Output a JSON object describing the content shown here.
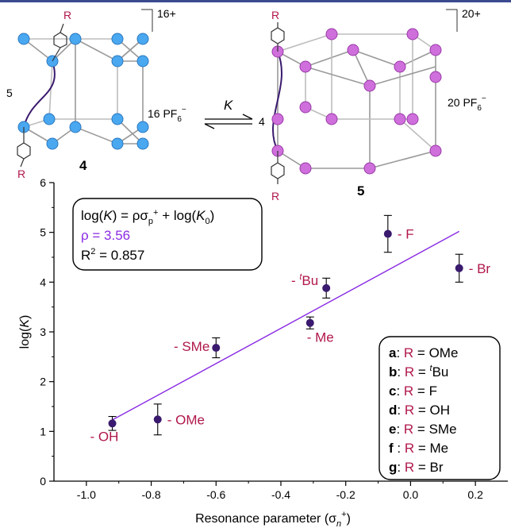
{
  "scheme": {
    "cage4": {
      "label": "4",
      "charge": "16+",
      "edge_count": "5",
      "counterion_count": "16",
      "counterion": "PF",
      "counterion_sub": "6",
      "counterion_sup": "−",
      "substituent": "R"
    },
    "cage5": {
      "label": "5",
      "charge": "20+",
      "edge_count": "4",
      "counterion_count": "20",
      "counterion": "PF",
      "counterion_sub": "6",
      "counterion_sup": "−",
      "substituent": "R"
    },
    "equilibrium_label": "K"
  },
  "equation_box": {
    "line1": {
      "a": "log(",
      "b": "K",
      "c": ") = ρσ",
      "d": "p",
      "e": "+",
      "f": " + log(",
      "g": "K",
      "h": "0",
      "i": ")"
    },
    "rho": "ρ = 3.56",
    "r2": {
      "a": "R",
      "b": "2",
      "c": " = 0.857"
    }
  },
  "legend_box": {
    "rows": [
      {
        "key": "a",
        "sep": ": ",
        "r": "R",
        "eq": " = ",
        "sup": "",
        "val": "OMe"
      },
      {
        "key": "b",
        "sep": ": ",
        "r": "R",
        "eq": " = ",
        "sup": "t",
        "val": "Bu"
      },
      {
        "key": "c",
        "sep": ": ",
        "r": "R",
        "eq": " = ",
        "sup": "",
        "val": "F"
      },
      {
        "key": "d",
        "sep": ": ",
        "r": "R",
        "eq": " = ",
        "sup": "",
        "val": "OH"
      },
      {
        "key": "e",
        "sep": ": ",
        "r": "R",
        "eq": " = ",
        "sup": "",
        "val": "SMe"
      },
      {
        "key": "f",
        "sep": " : ",
        "r": "R",
        "eq": " = ",
        "sup": "",
        "val": "Me"
      },
      {
        "key": "g",
        "sep": ": ",
        "r": "R",
        "eq": " = ",
        "sup": "",
        "val": "Br"
      }
    ]
  },
  "chart_data": {
    "type": "scatter",
    "xlabel": {
      "text": "Resonance parameter (σ",
      "sub": "n",
      "sup": "+",
      "close": ")"
    },
    "ylabel": {
      "a": "log(",
      "b": "K",
      "c": ")"
    },
    "xlim": [
      -1.1,
      0.3
    ],
    "ylim": [
      0,
      6
    ],
    "xticks": [
      -1.0,
      -0.8,
      -0.6,
      -0.4,
      -0.2,
      0.0,
      0.2
    ],
    "xtick_labels": [
      "-1.0",
      "-0.8",
      "-0.6",
      "-0.4",
      "-0.2",
      "0.0",
      "0.2"
    ],
    "yticks": [
      0,
      1,
      2,
      3,
      4,
      5,
      6
    ],
    "ytick_labels": [
      "0",
      "1",
      "2",
      "3",
      "4",
      "5",
      "6"
    ],
    "grid": false,
    "points": [
      {
        "x": -0.92,
        "y": 1.16,
        "err": 0.14,
        "label": "- OH",
        "sup": ""
      },
      {
        "x": -0.78,
        "y": 1.24,
        "err": 0.31,
        "label": "- OMe",
        "sup": ""
      },
      {
        "x": -0.6,
        "y": 2.68,
        "err": 0.2,
        "label": "- SMe",
        "sup": ""
      },
      {
        "x": -0.31,
        "y": 3.18,
        "err": 0.12,
        "label": "- Me",
        "sup": ""
      },
      {
        "x": -0.26,
        "y": 3.88,
        "err": 0.2,
        "label": "Bu",
        "sup": "t",
        "prefix": "- "
      },
      {
        "x": -0.07,
        "y": 4.97,
        "err": 0.37,
        "label": "- F",
        "sup": ""
      },
      {
        "x": 0.15,
        "y": 4.28,
        "err": 0.28,
        "label": "- Br",
        "sup": ""
      }
    ],
    "fit": {
      "x1": -0.92,
      "y1": 1.23,
      "x2": 0.15,
      "y2": 5.02,
      "color": "#8a2be2"
    },
    "colors": {
      "point": "#3a1a6e",
      "label": "#b0174a",
      "fit": "#8a2be2"
    }
  }
}
